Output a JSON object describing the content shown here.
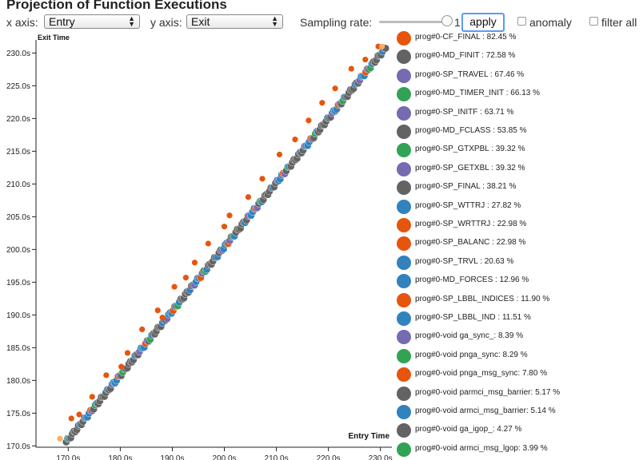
{
  "title": "Projection of Function Executions",
  "controls": {
    "x_axis_label": "x axis:",
    "x_axis_value": "Entry",
    "y_axis_label": "y axis:",
    "y_axis_value": "Exit",
    "sampling_label": "Sampling rate:",
    "sampling_value": "1",
    "apply_label": "apply",
    "anomaly_label": "anomaly",
    "filter_label": "filter all"
  },
  "colors": {
    "orange": "#e6550d",
    "grey": "#636363",
    "purple": "#756bb1",
    "green": "#31a354",
    "blue": "#3182bd",
    "light_orange": "#fdae6b"
  },
  "legend": [
    {
      "label": "prog#0-CF_FINAL : 82.45 %",
      "color": "#e6550d"
    },
    {
      "label": "prog#0-MD_FINIT : 72.58 %",
      "color": "#636363"
    },
    {
      "label": "prog#0-SP_TRAVEL : 67.46 %",
      "color": "#756bb1"
    },
    {
      "label": "prog#0-MD_TIMER_INIT : 66.13 %",
      "color": "#31a354"
    },
    {
      "label": "prog#0-SP_INITF : 63.71 %",
      "color": "#756bb1"
    },
    {
      "label": "prog#0-MD_FCLASS : 53.85 %",
      "color": "#636363"
    },
    {
      "label": "prog#0-SP_GTXPBL : 39.32 %",
      "color": "#31a354"
    },
    {
      "label": "prog#0-SP_GETXBL : 39.32 %",
      "color": "#756bb1"
    },
    {
      "label": "prog#0-SP_FINAL : 38.21 %",
      "color": "#636363"
    },
    {
      "label": "prog#0-SP_WTTRJ : 27.82 %",
      "color": "#3182bd"
    },
    {
      "label": "prog#0-SP_WRTTRJ : 22.98 %",
      "color": "#e6550d"
    },
    {
      "label": "prog#0-SP_BALANC : 22.98 %",
      "color": "#e6550d"
    },
    {
      "label": "prog#0-SP_TRVL : 20.63 %",
      "color": "#3182bd"
    },
    {
      "label": "prog#0-MD_FORCES : 12.96 %",
      "color": "#3182bd"
    },
    {
      "label": "prog#0-SP_LBBL_INDICES : 11.90 %",
      "color": "#e6550d"
    },
    {
      "label": "prog#0-SP_LBBL_IND : 11.51 %",
      "color": "#3182bd"
    },
    {
      "label": "prog#0-void ga_sync_: 8.39 %",
      "color": "#756bb1"
    },
    {
      "label": "prog#0-void pnga_sync: 8.29 %",
      "color": "#31a354"
    },
    {
      "label": "prog#0-void pnga_msg_sync: 7.80 %",
      "color": "#e6550d"
    },
    {
      "label": "prog#0-void parmci_msg_barrier: 5.17 %",
      "color": "#636363"
    },
    {
      "label": "prog#0-void armci_msg_barrier: 5.14 %",
      "color": "#3182bd"
    },
    {
      "label": "prog#0-void ga_igop_: 4.27 %",
      "color": "#636363"
    },
    {
      "label": "prog#0-void armci_msg_lgop: 3.99 %",
      "color": "#31a354"
    }
  ],
  "chart_data": {
    "type": "scatter",
    "xlabel": "Entry Time",
    "ylabel": "Exit Time",
    "xlim": [
      163.8,
      232.2
    ],
    "ylim": [
      169.8,
      232.0
    ],
    "x_ticks": [
      "170.0s",
      "180.0s",
      "190.0s",
      "200.0s",
      "210.0s",
      "220.0s",
      "230.0s"
    ],
    "y_ticks": [
      "170.0s",
      "175.0s",
      "180.0s",
      "185.0s",
      "190.0s",
      "195.0s",
      "200.0s",
      "205.0s",
      "210.0s",
      "215.0s",
      "220.0s",
      "225.0s",
      "230.0s"
    ],
    "x_tick_values": [
      170,
      180,
      190,
      200,
      210,
      220,
      230
    ],
    "y_tick_values": [
      170,
      175,
      180,
      185,
      190,
      195,
      200,
      205,
      210,
      215,
      220,
      225,
      230
    ],
    "main_diagonal": {
      "x_start": 169.6,
      "x_end": 231.0,
      "y_start": 170.6,
      "y_end": 230.8
    },
    "outliers": [
      {
        "x": 168.4,
        "y": 171.1,
        "c": "#fdae6b"
      },
      {
        "x": 170.6,
        "y": 174.2,
        "c": "#e6550d"
      },
      {
        "x": 172.1,
        "y": 174.8,
        "c": "#e6550d"
      },
      {
        "x": 174.6,
        "y": 177.5,
        "c": "#e6550d"
      },
      {
        "x": 177.3,
        "y": 180.8,
        "c": "#e6550d"
      },
      {
        "x": 180.2,
        "y": 182.1,
        "c": "#e6550d"
      },
      {
        "x": 181.4,
        "y": 184.2,
        "c": "#e6550d"
      },
      {
        "x": 184.2,
        "y": 187.8,
        "c": "#e6550d"
      },
      {
        "x": 187.2,
        "y": 190.7,
        "c": "#e6550d"
      },
      {
        "x": 188.1,
        "y": 189.6,
        "c": "#e6550d"
      },
      {
        "x": 190.4,
        "y": 194.3,
        "c": "#e6550d"
      },
      {
        "x": 192.6,
        "y": 195.7,
        "c": "#e6550d"
      },
      {
        "x": 194.3,
        "y": 198.0,
        "c": "#e6550d"
      },
      {
        "x": 196.9,
        "y": 200.9,
        "c": "#e6550d"
      },
      {
        "x": 200.0,
        "y": 203.5,
        "c": "#e6550d"
      },
      {
        "x": 201.0,
        "y": 205.2,
        "c": "#e6550d"
      },
      {
        "x": 204.6,
        "y": 208.0,
        "c": "#e6550d"
      },
      {
        "x": 207.3,
        "y": 210.8,
        "c": "#e6550d"
      },
      {
        "x": 210.6,
        "y": 214.5,
        "c": "#e6550d"
      },
      {
        "x": 213.6,
        "y": 216.8,
        "c": "#e6550d"
      },
      {
        "x": 216.2,
        "y": 219.7,
        "c": "#e6550d"
      },
      {
        "x": 218.8,
        "y": 222.4,
        "c": "#e6550d"
      },
      {
        "x": 221.3,
        "y": 224.6,
        "c": "#e6550d"
      },
      {
        "x": 224.4,
        "y": 227.6,
        "c": "#e6550d"
      },
      {
        "x": 227.1,
        "y": 229.0,
        "c": "#e6550d"
      },
      {
        "x": 229.6,
        "y": 231.0,
        "c": "#e6550d"
      },
      {
        "x": 230.3,
        "y": 231.0,
        "c": "#fdae6b"
      }
    ]
  }
}
